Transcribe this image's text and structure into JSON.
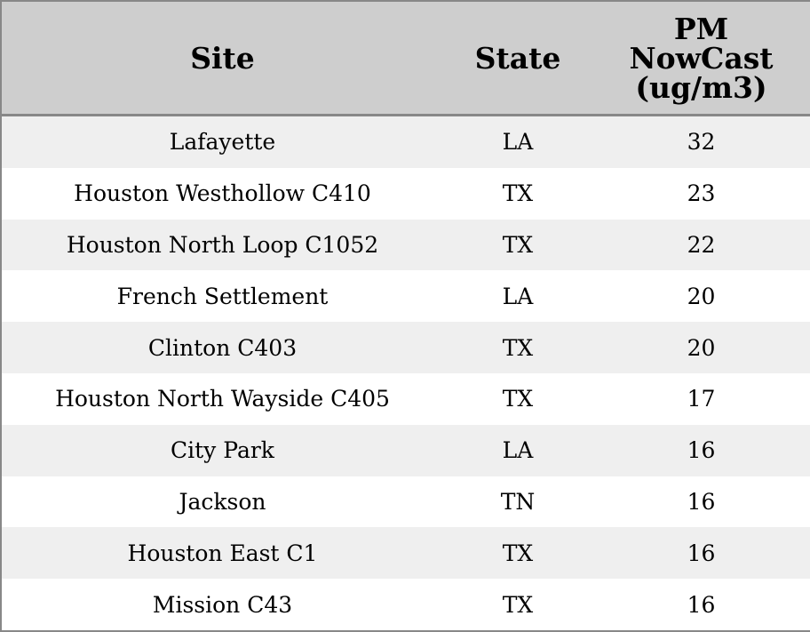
{
  "table": {
    "header": [
      "Site",
      "State",
      "PM NowCast (ug/m3)"
    ],
    "rows": [
      [
        "Lafayette",
        "LA",
        32
      ],
      [
        "Houston Westhollow C410",
        "TX",
        23
      ],
      [
        "Houston North Loop C1052",
        "TX",
        22
      ],
      [
        "French Settlement",
        "LA",
        20
      ],
      [
        "Clinton C403",
        "TX",
        20
      ],
      [
        "Houston North Wayside C405",
        "TX",
        17
      ],
      [
        "City Park",
        "LA",
        16
      ],
      [
        "Jackson",
        "TN",
        16
      ],
      [
        "Houston East C1",
        "TX",
        16
      ],
      [
        "Mission C43",
        "TX",
        16
      ]
    ]
  }
}
